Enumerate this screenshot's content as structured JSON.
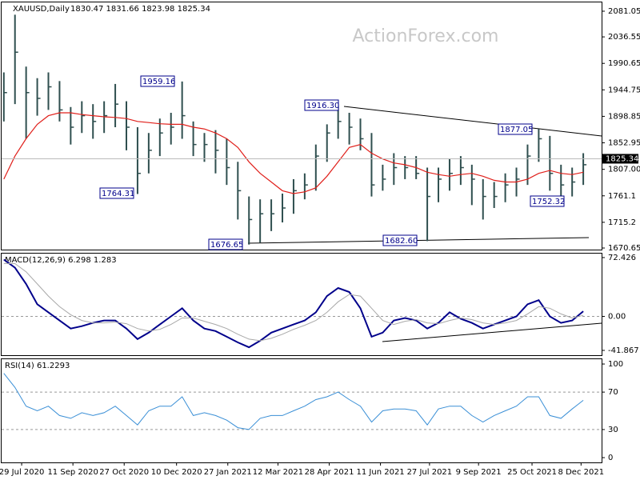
{
  "watermark": "ActionForex.com",
  "chart_data": [
    {
      "type": "ohlc",
      "title": "XAUUSD,Daily",
      "subtitle": "1830.47 1831.66 1823.98 1825.34",
      "color": "#2f4f4f",
      "xlim": [
        -0.2,
        53.5
      ],
      "ylim": [
        1667.9,
        2097.7
      ],
      "yticks": [
        2081.05,
        2036.55,
        1990.65,
        1944.75,
        1898.85,
        1852.95,
        {
          "value": 1807,
          "label": "1807.00"
        },
        1761.1,
        1715.2,
        1670.65
      ],
      "last": 1825.34,
      "high": [
        1975,
        2075,
        1985,
        1965,
        1975,
        1960,
        1915,
        1925,
        1920,
        1925,
        1955,
        1925,
        1880,
        1870,
        1895,
        1905,
        1959.16,
        1890,
        1870,
        1875,
        1860,
        1820,
        1760,
        1755,
        1755,
        1765,
        1790,
        1800,
        1850,
        1885,
        1916.3,
        1905,
        1895,
        1870,
        1815,
        1835,
        1830,
        1830,
        1810,
        1810,
        1825,
        1830,
        1815,
        1790,
        1785,
        1800,
        1810,
        1850,
        1877.05,
        1865,
        1815,
        1810,
        1835
      ],
      "low": [
        1890,
        1920,
        1860,
        1900,
        1910,
        1890,
        1850,
        1870,
        1860,
        1870,
        1880,
        1840,
        1764.31,
        1800,
        1830,
        1850,
        1860,
        1830,
        1820,
        1800,
        1780,
        1720,
        1676.65,
        1680,
        1700,
        1715,
        1730,
        1755,
        1770,
        1820,
        1860,
        1850,
        1840,
        1760,
        1770,
        1780,
        1790,
        1790,
        1682.6,
        1750,
        1770,
        1780,
        1745,
        1720,
        1740,
        1750,
        1760,
        1780,
        1820,
        1770,
        1752.32,
        1760,
        1780
      ],
      "close": [
        1940,
        2010,
        1940,
        1930,
        1950,
        1910,
        1880,
        1900,
        1890,
        1900,
        1920,
        1880,
        1800,
        1840,
        1870,
        1880,
        1900,
        1850,
        1850,
        1840,
        1810,
        1770,
        1720,
        1730,
        1730,
        1740,
        1770,
        1780,
        1830,
        1870,
        1890,
        1880,
        1860,
        1780,
        1790,
        1810,
        1810,
        1800,
        1760,
        1790,
        1800,
        1810,
        1790,
        1760,
        1760,
        1780,
        1790,
        1830,
        1860,
        1800,
        1780,
        1785,
        1815
      ],
      "ma": {
        "color": "#e0201b",
        "values": [
          1790,
          1830,
          1860,
          1885,
          1900,
          1905,
          1905,
          1902,
          1900,
          1898,
          1897,
          1895,
          1890,
          1888,
          1886,
          1885,
          1885,
          1880,
          1877,
          1870,
          1860,
          1845,
          1820,
          1800,
          1785,
          1770,
          1765,
          1768,
          1775,
          1795,
          1820,
          1845,
          1850,
          1835,
          1825,
          1818,
          1815,
          1810,
          1802,
          1798,
          1795,
          1798,
          1800,
          1795,
          1788,
          1785,
          1785,
          1790,
          1800,
          1805,
          1800,
          1798,
          1802
        ]
      },
      "annotations": [
        "1959.16",
        "1764.31",
        "1916.30",
        "1877.05",
        "1676.65",
        "1682.60",
        "1752.32"
      ]
    },
    {
      "type": "line",
      "title": "MACD(12,26,9) 6.298 1.283",
      "xlim": [
        -0.2,
        53.5
      ],
      "ylim": [
        -47.8,
        78.3
      ],
      "yticks": [
        72.426,
        {
          "value": 0,
          "label": "0.00"
        },
        -41.867
      ],
      "series": [
        {
          "color": "#00008b",
          "values": [
            70,
            60,
            40,
            15,
            5,
            -5,
            -15,
            -12,
            -8,
            -5,
            -5,
            -15,
            -28,
            -20,
            -10,
            0,
            10,
            -5,
            -15,
            -18,
            -25,
            -32,
            -38,
            -30,
            -20,
            -15,
            -10,
            -5,
            5,
            25,
            35,
            30,
            10,
            -25,
            -20,
            -5,
            -2,
            -5,
            -15,
            -8,
            5,
            -3,
            -8,
            -15,
            -10,
            -5,
            0,
            15,
            20,
            0,
            -8,
            -5,
            6.298
          ]
        },
        {
          "color": "#a8a8a8",
          "values": [
            65,
            65,
            55,
            40,
            25,
            12,
            2,
            -5,
            -8,
            -8,
            -7,
            -9,
            -15,
            -18,
            -16,
            -10,
            -2,
            -2,
            -6,
            -10,
            -15,
            -22,
            -28,
            -30,
            -27,
            -22,
            -16,
            -11,
            -5,
            5,
            18,
            27,
            25,
            10,
            -5,
            -10,
            -6,
            -4,
            -8,
            -9,
            -5,
            -2,
            -4,
            -8,
            -10,
            -8,
            -5,
            3,
            12,
            10,
            3,
            -2,
            1.283
          ]
        }
      ]
    },
    {
      "type": "line",
      "title": "RSI(14) 61.2293",
      "xlim": [
        -0.2,
        53.5
      ],
      "ylim": [
        -5.1,
        106
      ],
      "yticks": [
        100,
        70,
        30,
        0
      ],
      "series": [
        {
          "color": "#3a8fd6",
          "values": [
            90,
            75,
            55,
            50,
            55,
            45,
            42,
            48,
            45,
            48,
            55,
            45,
            35,
            50,
            55,
            55,
            65,
            45,
            48,
            45,
            40,
            32,
            30,
            42,
            45,
            45,
            50,
            55,
            62,
            65,
            70,
            62,
            55,
            38,
            50,
            52,
            52,
            50,
            35,
            52,
            55,
            55,
            45,
            38,
            45,
            50,
            55,
            65,
            65,
            45,
            42,
            52,
            61.2293
          ]
        }
      ],
      "xticks": [
        {
          "value": 1.6,
          "label": "29 Jul 2020"
        },
        {
          "value": 6.2,
          "label": "11 Sep 2020"
        },
        {
          "value": 10.8,
          "label": "27 Oct 2020"
        },
        {
          "value": 15.5,
          "label": "10 Dec 2020"
        },
        {
          "value": 20.1,
          "label": "27 Jan 2021"
        },
        {
          "value": 24.6,
          "label": "12 Mar 2021"
        },
        {
          "value": 29.2,
          "label": "28 Apr 2021"
        },
        {
          "value": 33.8,
          "label": "11 Jun 2021"
        },
        {
          "value": 38.2,
          "label": "27 Jul 2021"
        },
        {
          "value": 42.6,
          "label": "9 Sep 2021"
        },
        {
          "value": 47.4,
          "label": "25 Oct 2021"
        },
        {
          "value": 51.8,
          "label": "8 Dec 2021"
        }
      ]
    }
  ]
}
